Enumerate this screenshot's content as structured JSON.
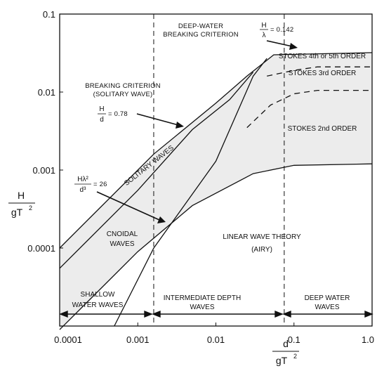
{
  "chart_data": {
    "type": "line",
    "scale": "log-log",
    "xlim": [
      0.0001,
      1.0
    ],
    "ylim": [
      1e-05,
      0.1
    ],
    "x_ticks": [
      "0.0001",
      "0.001",
      "0.01",
      "0.1",
      "1.0"
    ],
    "y_ticks": [
      "0.1",
      "0.01",
      "0.001",
      "0.0001"
    ],
    "xlabel": {
      "num": "d",
      "den": "gT",
      "exp": "2"
    },
    "ylabel": {
      "num": "H",
      "den": "gT",
      "exp": "2"
    },
    "colors": {
      "region_fill": "#ececec",
      "line": "#111111"
    },
    "region_boundaries": [
      {
        "x": 0.0016,
        "label": "shallow / intermediate"
      },
      {
        "x": 0.075,
        "label": "intermediate / deep"
      }
    ],
    "series": [
      {
        "style": "solid",
        "points": [
          [
            0.0001,
            0.0001
          ],
          [
            0.0016,
            0.0016
          ],
          [
            0.01,
            0.0072
          ],
          [
            0.025,
            0.016
          ],
          [
            0.055,
            0.03
          ],
          [
            1.0,
            0.032
          ]
        ]
      },
      {
        "style": "solid",
        "points": [
          [
            0.0001,
            5.5e-05
          ],
          [
            0.001,
            0.00055
          ],
          [
            0.005,
            0.0033
          ],
          [
            0.015,
            0.008
          ],
          [
            0.03,
            0.018
          ]
        ]
      },
      {
        "style": "solid",
        "points": [
          [
            0.0005,
            1e-05
          ],
          [
            0.0016,
            0.0001
          ],
          [
            0.01,
            0.0013
          ],
          [
            0.03,
            0.016
          ],
          [
            0.045,
            0.027
          ]
        ]
      },
      {
        "style": "solid",
        "points": [
          [
            0.0001,
            9e-06
          ],
          [
            0.001,
            9e-05
          ],
          [
            0.005,
            0.00035
          ],
          [
            0.03,
            0.0009
          ],
          [
            0.1,
            0.00115
          ],
          [
            1.0,
            0.0012
          ]
        ]
      },
      {
        "style": "dashed",
        "points": [
          [
            0.025,
            0.0035
          ],
          [
            0.05,
            0.0068
          ],
          [
            0.1,
            0.0095
          ],
          [
            0.2,
            0.0105
          ],
          [
            1.0,
            0.0105
          ]
        ]
      },
      {
        "style": "dashed",
        "points": [
          [
            0.045,
            0.016
          ],
          [
            0.1,
            0.019
          ],
          [
            0.2,
            0.021
          ],
          [
            1.0,
            0.021
          ]
        ]
      }
    ],
    "annotations": {
      "deep_water": {
        "title1": "DEEP-WATER",
        "title2": "BREAKING CRITERION",
        "num": "H",
        "den": "λ",
        "val": "= 0.142"
      },
      "breaking": {
        "line1": "BREAKING CRITERION",
        "line2": "(SOLITARY WAVE)",
        "num": "H",
        "den": "d",
        "val": "= 0.78"
      },
      "cnoidal_crit": {
        "num": "Hλ²",
        "den": "d³",
        "val": "= 26"
      },
      "solitary": "SOLITARY WAVES",
      "cnoidal": {
        "line1": "CNOIDAL",
        "line2": "WAVES"
      },
      "stokes_45": "STOKES 4th or 5th ORDER",
      "stokes_3": "STOKES 3rd ORDER",
      "stokes_2": "STOKES 2nd ORDER",
      "linear": {
        "line1": "LINEAR WAVE THEORY",
        "line2": "(AIRY)"
      },
      "shallow": {
        "line1": "SHALLOW",
        "line2": "WATER WAVES"
      },
      "intermediate": {
        "line1": "INTERMEDIATE DEPTH",
        "line2": "WAVES"
      },
      "deep": {
        "line1": "DEEP WATER",
        "line2": "WAVES"
      }
    }
  }
}
